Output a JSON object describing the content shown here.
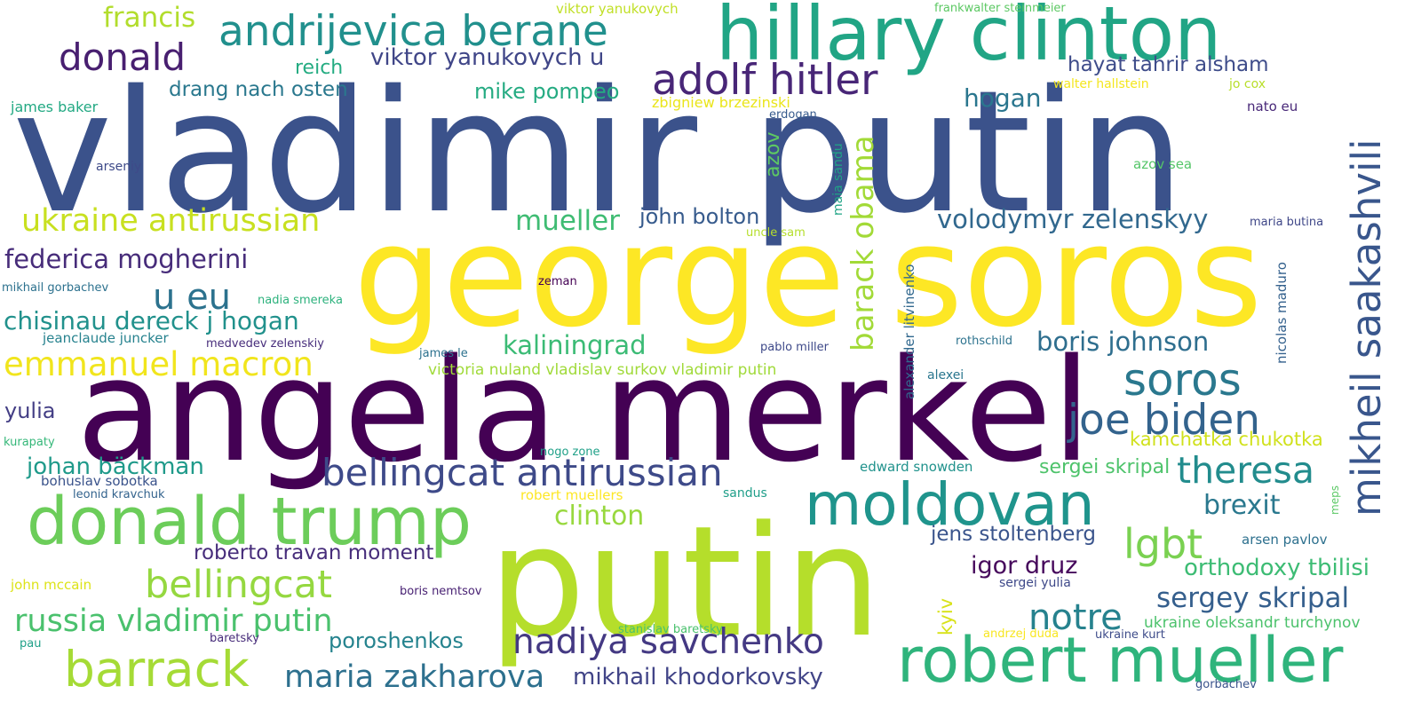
{
  "words": [
    {
      "text": "vladimir putin",
      "color": "#3b528b"
    },
    {
      "text": "george soros",
      "color": "#fde725"
    },
    {
      "text": "angela merkel",
      "color": "#440154"
    },
    {
      "text": "putin",
      "color": "#b5de2b"
    },
    {
      "text": "hillary clinton",
      "color": "#21a585"
    },
    {
      "text": "robert mueller",
      "color": "#2fb47c"
    },
    {
      "text": "donald trump",
      "color": "#6ccd5a"
    },
    {
      "text": "moldovan",
      "color": "#1f948c"
    },
    {
      "text": "andrijevica berane",
      "color": "#21908d"
    },
    {
      "text": "adolf hitler",
      "color": "#482677"
    },
    {
      "text": "mikheil saakashvili",
      "color": "#39568c"
    },
    {
      "text": "barrack",
      "color": "#a5db36"
    },
    {
      "text": "soros",
      "color": "#2a788e"
    },
    {
      "text": "bellingcat antirussian",
      "color": "#3e4a89"
    },
    {
      "text": "joe biden",
      "color": "#33638d"
    },
    {
      "text": "donald",
      "color": "#481f70"
    },
    {
      "text": "nadiya savchenko",
      "color": "#443983"
    },
    {
      "text": "bellingcat",
      "color": "#95d840"
    },
    {
      "text": "emmanuel macron",
      "color": "#f1e51d"
    },
    {
      "text": "theresa",
      "color": "#228c8d"
    },
    {
      "text": "lgbt",
      "color": "#7ad151"
    },
    {
      "text": "u eu",
      "color": "#2c728e"
    },
    {
      "text": "ukraine antirussian",
      "color": "#c8e020"
    },
    {
      "text": "russia vladimir putin",
      "color": "#4ac16d"
    },
    {
      "text": "maria zakharova",
      "color": "#2d708e"
    },
    {
      "text": "barack obama",
      "color": "#a2da37"
    },
    {
      "text": "notre",
      "color": "#26828e"
    },
    {
      "text": "federica mogherini",
      "color": "#472c7a"
    },
    {
      "text": "volodymyr zelenskyy",
      "color": "#31688e"
    },
    {
      "text": "chisinau dereck j hogan",
      "color": "#21918c"
    },
    {
      "text": "kaliningrad",
      "color": "#3bbb75"
    },
    {
      "text": "boris johnson",
      "color": "#2e6e8e"
    },
    {
      "text": "mueller",
      "color": "#3fbc73"
    },
    {
      "text": "sergey skripal",
      "color": "#355f8d"
    },
    {
      "text": "francis",
      "color": "#b2dd2d"
    },
    {
      "text": "viktor yanukovych u",
      "color": "#404688"
    },
    {
      "text": "hogan",
      "color": "#2a768e"
    },
    {
      "text": "johan bäckman",
      "color": "#1f9a8a"
    },
    {
      "text": "mikhail khodorkovsky",
      "color": "#414487"
    },
    {
      "text": "clinton",
      "color": "#98d83e"
    },
    {
      "text": "brexit",
      "color": "#2a788e"
    },
    {
      "text": "orthodoxy tbilisi",
      "color": "#3dbc74"
    },
    {
      "text": "roberto travan moment",
      "color": "#472d7b"
    },
    {
      "text": "poroshenkos",
      "color": "#25838e"
    },
    {
      "text": "mike pompeo",
      "color": "#25ab82"
    },
    {
      "text": "hayat tahrir alsham",
      "color": "#3e4c8a"
    },
    {
      "text": "john bolton",
      "color": "#375b8d"
    },
    {
      "text": "drang nach osten",
      "color": "#2a788e"
    },
    {
      "text": "igor druz",
      "color": "#46085c"
    },
    {
      "text": "jens stoltenberg",
      "color": "#3a548c"
    },
    {
      "text": "kamchatka chukotka",
      "color": "#d0e11c"
    },
    {
      "text": "sergei skripal",
      "color": "#4ec36b"
    },
    {
      "text": "yulia",
      "color": "#433e85"
    },
    {
      "text": "azov",
      "color": "#5ec962"
    },
    {
      "text": "reich",
      "color": "#25ac82"
    },
    {
      "text": "alexander litvinenko",
      "color": "#31688e"
    },
    {
      "text": "nicolas maduro",
      "color": "#34618d"
    },
    {
      "text": "ukraine oleksandr turchynov",
      "color": "#4cc26c"
    },
    {
      "text": "victoria nuland vladislav surkov vladimir putin",
      "color": "#a0da39"
    },
    {
      "text": "kyiv",
      "color": "#d8e219"
    },
    {
      "text": "viktor yanukovych",
      "color": "#c0df25"
    },
    {
      "text": "frankwalter steinmeier",
      "color": "#5cc863"
    },
    {
      "text": "walter hallstein",
      "color": "#f4e61e"
    },
    {
      "text": "jo cox",
      "color": "#b8de29"
    },
    {
      "text": "zbigniew brzezinski",
      "color": "#eae51a"
    },
    {
      "text": "james baker",
      "color": "#23a983"
    },
    {
      "text": "arseniy",
      "color": "#3e4a89"
    },
    {
      "text": "erdogan",
      "color": "#375b8d"
    },
    {
      "text": "maia sandu",
      "color": "#20a486"
    },
    {
      "text": "azov sea",
      "color": "#54c568"
    },
    {
      "text": "nato eu",
      "color": "#482878"
    },
    {
      "text": "uncle sam",
      "color": "#b5de2b"
    },
    {
      "text": "maria butina",
      "color": "#3f4788"
    },
    {
      "text": "mikhail gorbachev",
      "color": "#2c718e"
    },
    {
      "text": "nadia smereka",
      "color": "#2db27d"
    },
    {
      "text": "zeman",
      "color": "#440154"
    },
    {
      "text": "jeanclaude juncker",
      "color": "#26828e"
    },
    {
      "text": "medvedev zelenskiy",
      "color": "#472d7b"
    },
    {
      "text": "james le",
      "color": "#2c718e"
    },
    {
      "text": "pablo miller",
      "color": "#3e4989"
    },
    {
      "text": "rothschild",
      "color": "#2c728e"
    },
    {
      "text": "alexei",
      "color": "#2a768e"
    },
    {
      "text": "kurapaty",
      "color": "#35b779"
    },
    {
      "text": "nogo zone",
      "color": "#1fa088"
    },
    {
      "text": "edward snowden",
      "color": "#20928c"
    },
    {
      "text": "bohuslav sobotka",
      "color": "#3a538b"
    },
    {
      "text": "leonid kravchuk",
      "color": "#33638d"
    },
    {
      "text": "robert muellers",
      "color": "#fde725"
    },
    {
      "text": "sandus",
      "color": "#1f9e89"
    },
    {
      "text": "meps",
      "color": "#5ac864"
    },
    {
      "text": "arsen pavlov",
      "color": "#2d708e"
    },
    {
      "text": "john mccain",
      "color": "#dde318"
    },
    {
      "text": "boris nemtsov",
      "color": "#482173"
    },
    {
      "text": "sergei yulia",
      "color": "#3e4989"
    },
    {
      "text": "stanislav baretsky",
      "color": "#4ac16d"
    },
    {
      "text": "andrzej duda",
      "color": "#f8e621"
    },
    {
      "text": "ukraine kurt",
      "color": "#3e4c8a"
    },
    {
      "text": "pau",
      "color": "#1fa088"
    },
    {
      "text": "baretsky",
      "color": "#472c7a"
    },
    {
      "text": "gorbachev",
      "color": "#3a538b"
    }
  ]
}
